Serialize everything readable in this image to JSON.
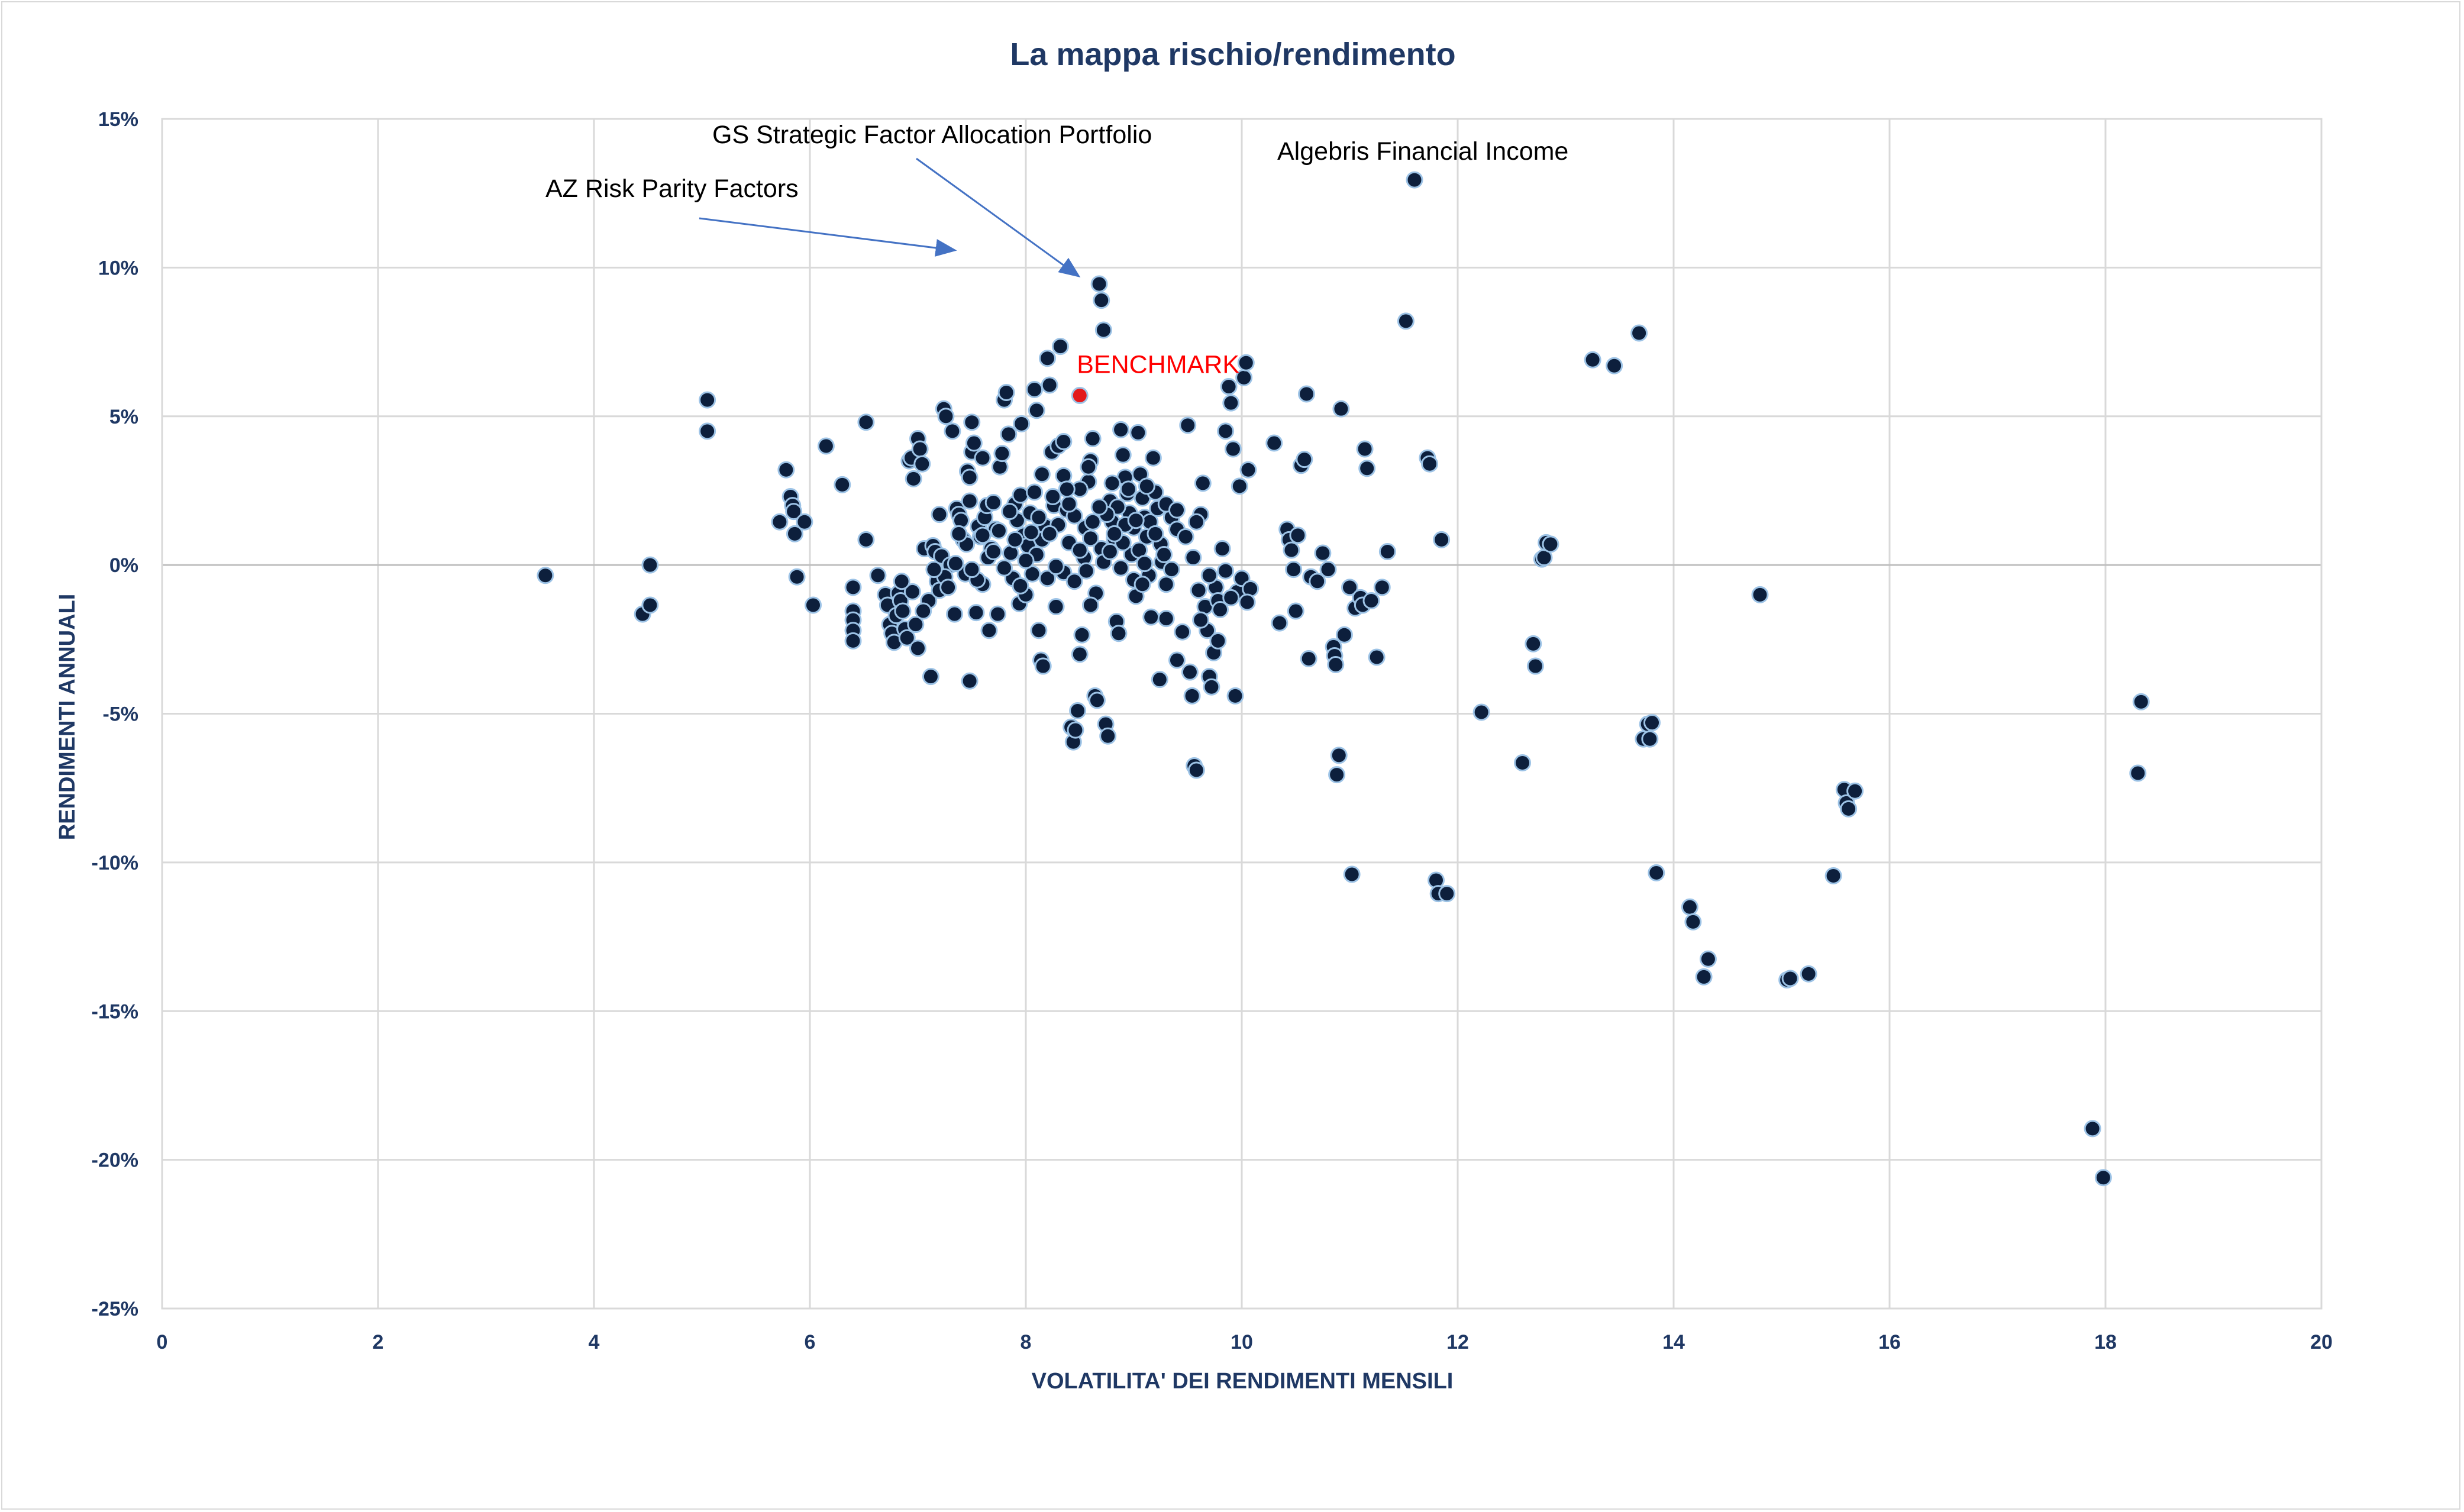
{
  "chart_data": {
    "type": "scatter",
    "title": "La mappa rischio/rendimento",
    "xlabel": "VOLATILITA' DEI RENDIMENTI MENSILI",
    "ylabel": "RENDIMENTI ANNUALI",
    "xlim": [
      0,
      20
    ],
    "ylim": [
      -25,
      15
    ],
    "x_ticks": [
      0,
      2,
      4,
      6,
      8,
      10,
      12,
      14,
      16,
      18,
      20
    ],
    "y_ticks": [
      15,
      10,
      5,
      0,
      -5,
      -10,
      -15,
      -20,
      -25
    ],
    "y_tick_labels": [
      "15%",
      "10%",
      "5%",
      "0%",
      "-5%",
      "-10%",
      "-15%",
      "-20%",
      "-25%"
    ],
    "grid": true,
    "legend": "none",
    "colors": {
      "points": "#0d1f3c",
      "point_outline": "#9dc3e6",
      "benchmark": "#e31a1c",
      "text": "#1f3864",
      "arrow": "#4472c4"
    },
    "benchmark": {
      "label": "BENCHMARK",
      "x": 8.5,
      "y": 5.7
    },
    "annotations": [
      {
        "text": "GS Strategic Factor Allocation Portfolio",
        "x": 8.6,
        "y": 9.5
      },
      {
        "text": "AZ Risk Parity Factors",
        "x": 7.45,
        "y": 10.35
      },
      {
        "text": "Algebris Financial Income",
        "x": 11.6,
        "y": 12.95
      }
    ],
    "points": [
      [
        3.55,
        -0.35
      ],
      [
        4.45,
        -1.65
      ],
      [
        4.52,
        -1.35
      ],
      [
        4.52,
        0.0
      ],
      [
        5.05,
        5.55
      ],
      [
        5.05,
        4.5
      ],
      [
        5.72,
        1.45
      ],
      [
        5.78,
        3.2
      ],
      [
        5.82,
        2.3
      ],
      [
        5.84,
        2.0
      ],
      [
        5.85,
        1.8
      ],
      [
        5.86,
        1.05
      ],
      [
        5.88,
        -0.4
      ],
      [
        5.95,
        1.45
      ],
      [
        6.03,
        -1.35
      ],
      [
        6.15,
        4.0
      ],
      [
        6.3,
        2.7
      ],
      [
        6.4,
        -0.75
      ],
      [
        6.4,
        -1.55
      ],
      [
        6.4,
        -1.85
      ],
      [
        6.4,
        -2.2
      ],
      [
        6.4,
        -2.55
      ],
      [
        6.52,
        4.8
      ],
      [
        6.52,
        0.85
      ],
      [
        6.63,
        -0.35
      ],
      [
        6.7,
        -1.0
      ],
      [
        6.72,
        -1.35
      ],
      [
        6.74,
        -2.0
      ],
      [
        6.76,
        -2.3
      ],
      [
        6.78,
        -2.6
      ],
      [
        6.8,
        -1.7
      ],
      [
        6.82,
        -0.95
      ],
      [
        6.84,
        -1.2
      ],
      [
        6.86,
        -1.55
      ],
      [
        6.88,
        -2.15
      ],
      [
        6.9,
        -2.45
      ],
      [
        6.92,
        3.5
      ],
      [
        6.94,
        3.6
      ],
      [
        6.96,
        2.9
      ],
      [
        6.98,
        -2.0
      ],
      [
        7.0,
        4.25
      ],
      [
        7.02,
        3.9
      ],
      [
        7.04,
        3.4
      ],
      [
        7.06,
        0.55
      ],
      [
        7.1,
        -1.2
      ],
      [
        7.12,
        -3.75
      ],
      [
        7.14,
        0.65
      ],
      [
        7.16,
        0.45
      ],
      [
        7.18,
        -0.55
      ],
      [
        7.2,
        -0.85
      ],
      [
        7.22,
        0.3
      ],
      [
        7.24,
        5.25
      ],
      [
        7.26,
        5.0
      ],
      [
        7.3,
        0.0
      ],
      [
        7.32,
        4.5
      ],
      [
        7.34,
        -1.65
      ],
      [
        7.36,
        1.9
      ],
      [
        7.38,
        1.7
      ],
      [
        7.4,
        1.5
      ],
      [
        7.42,
        0.85
      ],
      [
        7.44,
        -0.3
      ],
      [
        7.46,
        3.15
      ],
      [
        7.48,
        2.95
      ],
      [
        7.48,
        -3.9
      ],
      [
        7.5,
        3.8
      ],
      [
        7.5,
        4.8
      ],
      [
        7.52,
        4.1
      ],
      [
        7.54,
        -1.6
      ],
      [
        7.56,
        1.3
      ],
      [
        7.58,
        0.95
      ],
      [
        7.6,
        -0.65
      ],
      [
        7.62,
        1.6
      ],
      [
        7.64,
        2.0
      ],
      [
        7.66,
        -2.2
      ],
      [
        7.68,
        0.55
      ],
      [
        7.7,
        2.1
      ],
      [
        7.72,
        1.2
      ],
      [
        7.74,
        -1.65
      ],
      [
        7.76,
        3.3
      ],
      [
        7.78,
        3.75
      ],
      [
        7.8,
        5.55
      ],
      [
        7.82,
        5.8
      ],
      [
        7.84,
        4.4
      ],
      [
        7.86,
        0.4
      ],
      [
        7.88,
        -0.45
      ],
      [
        7.9,
        2.05
      ],
      [
        7.92,
        1.5
      ],
      [
        7.94,
        -1.3
      ],
      [
        7.96,
        4.75
      ],
      [
        7.98,
        1.0
      ],
      [
        8.0,
        -1.0
      ],
      [
        8.02,
        0.65
      ],
      [
        8.04,
        1.75
      ],
      [
        8.06,
        -0.3
      ],
      [
        8.08,
        5.9
      ],
      [
        8.1,
        5.2
      ],
      [
        8.12,
        -2.2
      ],
      [
        8.14,
        -3.2
      ],
      [
        8.16,
        -3.4
      ],
      [
        8.18,
        1.3
      ],
      [
        8.2,
        6.95
      ],
      [
        8.22,
        6.05
      ],
      [
        8.24,
        3.8
      ],
      [
        8.26,
        2.0
      ],
      [
        8.28,
        -1.4
      ],
      [
        8.3,
        4.0
      ],
      [
        8.32,
        7.35
      ],
      [
        8.35,
        3.0
      ],
      [
        8.38,
        1.85
      ],
      [
        8.4,
        0.75
      ],
      [
        8.42,
        -5.45
      ],
      [
        8.44,
        -5.95
      ],
      [
        8.46,
        -5.55
      ],
      [
        8.48,
        -4.9
      ],
      [
        8.5,
        -3.0
      ],
      [
        8.52,
        -2.35
      ],
      [
        8.54,
        0.25
      ],
      [
        8.56,
        -0.2
      ],
      [
        8.58,
        2.8
      ],
      [
        8.6,
        3.5
      ],
      [
        8.62,
        4.25
      ],
      [
        8.64,
        -4.4
      ],
      [
        8.66,
        -4.55
      ],
      [
        8.68,
        9.45
      ],
      [
        8.7,
        8.9
      ],
      [
        8.72,
        7.9
      ],
      [
        8.74,
        -5.35
      ],
      [
        8.76,
        -5.75
      ],
      [
        8.78,
        2.15
      ],
      [
        8.8,
        1.45
      ],
      [
        8.82,
        0.9
      ],
      [
        8.84,
        -1.9
      ],
      [
        8.86,
        -2.3
      ],
      [
        8.88,
        4.55
      ],
      [
        8.9,
        3.7
      ],
      [
        8.92,
        2.95
      ],
      [
        8.94,
        2.4
      ],
      [
        8.96,
        1.75
      ],
      [
        8.98,
        0.35
      ],
      [
        9.0,
        -0.5
      ],
      [
        9.02,
        -1.05
      ],
      [
        9.04,
        4.45
      ],
      [
        9.06,
        3.05
      ],
      [
        9.08,
        2.25
      ],
      [
        9.1,
        1.6
      ],
      [
        9.12,
        0.95
      ],
      [
        9.14,
        -0.35
      ],
      [
        9.16,
        -1.75
      ],
      [
        9.18,
        3.6
      ],
      [
        9.2,
        2.45
      ],
      [
        9.22,
        1.9
      ],
      [
        9.24,
        -3.85
      ],
      [
        9.26,
        0.1
      ],
      [
        9.3,
        -0.65
      ],
      [
        9.35,
        1.6
      ],
      [
        9.4,
        -3.2
      ],
      [
        9.45,
        -2.25
      ],
      [
        9.5,
        4.7
      ],
      [
        9.52,
        -3.6
      ],
      [
        9.54,
        -4.4
      ],
      [
        9.56,
        -6.75
      ],
      [
        9.58,
        -6.9
      ],
      [
        9.6,
        -0.85
      ],
      [
        9.62,
        1.7
      ],
      [
        9.64,
        2.75
      ],
      [
        9.66,
        -1.4
      ],
      [
        9.68,
        -2.2
      ],
      [
        9.7,
        -3.75
      ],
      [
        9.72,
        -4.1
      ],
      [
        9.74,
        -2.95
      ],
      [
        9.76,
        -0.75
      ],
      [
        9.78,
        -1.2
      ],
      [
        9.8,
        -1.5
      ],
      [
        9.82,
        0.55
      ],
      [
        9.85,
        4.5
      ],
      [
        9.88,
        6.0
      ],
      [
        9.9,
        5.45
      ],
      [
        9.92,
        3.9
      ],
      [
        9.94,
        -4.4
      ],
      [
        9.96,
        -0.9
      ],
      [
        9.98,
        2.65
      ],
      [
        10.0,
        -0.45
      ],
      [
        10.02,
        6.3
      ],
      [
        10.04,
        6.8
      ],
      [
        10.06,
        3.2
      ],
      [
        10.08,
        -0.8
      ],
      [
        10.3,
        4.1
      ],
      [
        10.35,
        -1.95
      ],
      [
        10.42,
        1.2
      ],
      [
        10.44,
        0.85
      ],
      [
        10.46,
        0.5
      ],
      [
        10.48,
        -0.15
      ],
      [
        10.5,
        -1.55
      ],
      [
        10.52,
        1.0
      ],
      [
        10.55,
        3.35
      ],
      [
        10.58,
        3.55
      ],
      [
        10.6,
        5.75
      ],
      [
        10.62,
        -3.15
      ],
      [
        10.64,
        -0.4
      ],
      [
        10.7,
        -0.55
      ],
      [
        10.75,
        0.4
      ],
      [
        10.8,
        -0.15
      ],
      [
        10.85,
        -2.75
      ],
      [
        10.86,
        -3.05
      ],
      [
        10.87,
        -3.35
      ],
      [
        10.88,
        -7.05
      ],
      [
        10.9,
        -6.4
      ],
      [
        10.92,
        5.25
      ],
      [
        10.95,
        -2.35
      ],
      [
        11.0,
        -0.75
      ],
      [
        11.02,
        -10.4
      ],
      [
        11.05,
        -1.45
      ],
      [
        11.1,
        -1.1
      ],
      [
        11.12,
        -1.35
      ],
      [
        11.14,
        3.9
      ],
      [
        11.16,
        3.25
      ],
      [
        11.2,
        -1.2
      ],
      [
        11.25,
        -3.1
      ],
      [
        11.3,
        -0.75
      ],
      [
        11.35,
        0.45
      ],
      [
        11.52,
        8.2
      ],
      [
        11.6,
        12.95
      ],
      [
        11.72,
        3.6
      ],
      [
        11.74,
        3.4
      ],
      [
        11.8,
        -10.6
      ],
      [
        11.82,
        -11.05
      ],
      [
        11.85,
        0.85
      ],
      [
        11.9,
        -11.05
      ],
      [
        12.22,
        -4.95
      ],
      [
        12.6,
        -6.65
      ],
      [
        12.7,
        -2.65
      ],
      [
        12.72,
        -3.4
      ],
      [
        12.78,
        0.2
      ],
      [
        12.8,
        0.25
      ],
      [
        12.82,
        0.75
      ],
      [
        12.86,
        0.7
      ],
      [
        13.25,
        6.9
      ],
      [
        13.45,
        6.7
      ],
      [
        13.68,
        7.8
      ],
      [
        13.72,
        -5.85
      ],
      [
        13.76,
        -5.35
      ],
      [
        13.78,
        -5.85
      ],
      [
        13.8,
        -5.3
      ],
      [
        13.84,
        -10.35
      ],
      [
        14.15,
        -11.5
      ],
      [
        14.18,
        -12.0
      ],
      [
        14.28,
        -13.85
      ],
      [
        14.32,
        -13.25
      ],
      [
        14.8,
        -1.0
      ],
      [
        15.05,
        -13.95
      ],
      [
        15.08,
        -13.9
      ],
      [
        15.25,
        -13.75
      ],
      [
        15.48,
        -10.45
      ],
      [
        15.58,
        -7.55
      ],
      [
        15.6,
        -8.0
      ],
      [
        15.62,
        -8.2
      ],
      [
        15.68,
        -7.6
      ],
      [
        17.88,
        -18.95
      ],
      [
        17.98,
        -20.6
      ],
      [
        18.3,
        -7.0
      ],
      [
        18.33,
        -4.6
      ],
      [
        7.0,
        -2.8
      ],
      [
        6.95,
        -0.9
      ],
      [
        7.55,
        -0.5
      ],
      [
        8.15,
        0.85
      ],
      [
        8.45,
        1.65
      ],
      [
        8.7,
        0.55
      ],
      [
        9.25,
        0.7
      ],
      [
        9.4,
        1.2
      ],
      [
        7.85,
        1.8
      ],
      [
        8.05,
        1.1
      ],
      [
        8.55,
        1.25
      ],
      [
        8.85,
        1.95
      ],
      [
        9.05,
        0.5
      ],
      [
        7.65,
        0.25
      ],
      [
        7.25,
        -0.4
      ],
      [
        7.95,
        -0.7
      ],
      [
        8.35,
        -0.25
      ],
      [
        8.65,
        -0.95
      ],
      [
        9.15,
        1.45
      ],
      [
        8.25,
        2.3
      ],
      [
        8.95,
        2.55
      ],
      [
        7.45,
        0.7
      ],
      [
        7.75,
        1.15
      ],
      [
        8.1,
        0.35
      ],
      [
        8.4,
        2.05
      ],
      [
        8.75,
        1.7
      ],
      [
        9.0,
        1.25
      ],
      [
        9.3,
        2.05
      ],
      [
        9.55,
        0.25
      ],
      [
        9.7,
        -0.35
      ],
      [
        9.85,
        -0.2
      ],
      [
        7.15,
        -0.15
      ],
      [
        7.35,
        0.05
      ],
      [
        7.95,
        2.35
      ],
      [
        8.6,
        0.9
      ],
      [
        8.8,
        2.75
      ],
      [
        9.1,
        0.05
      ],
      [
        9.35,
        -0.15
      ],
      [
        8.3,
        1.35
      ],
      [
        8.5,
        2.55
      ],
      [
        8.9,
        0.75
      ],
      [
        9.2,
        1.05
      ],
      [
        7.6,
        1.0
      ],
      [
        7.8,
        -0.1
      ],
      [
        8.0,
        0.15
      ],
      [
        8.2,
        -0.45
      ],
      [
        8.45,
        -0.55
      ],
      [
        8.72,
        0.1
      ],
      [
        9.48,
        0.95
      ],
      [
        9.62,
        -1.85
      ],
      [
        9.78,
        -2.55
      ],
      [
        6.85,
        -0.55
      ],
      [
        7.05,
        -1.55
      ],
      [
        7.28,
        -0.75
      ],
      [
        7.5,
        -0.15
      ],
      [
        7.7,
        0.45
      ],
      [
        8.88,
        -0.1
      ],
      [
        9.08,
        -0.65
      ],
      [
        9.28,
        0.35
      ],
      [
        8.58,
        3.3
      ],
      [
        8.35,
        4.15
      ],
      [
        7.6,
        3.6
      ],
      [
        8.15,
        3.05
      ],
      [
        9.4,
        1.85
      ],
      [
        8.68,
        1.95
      ],
      [
        8.92,
        1.35
      ],
      [
        7.38,
        1.05
      ],
      [
        8.08,
        2.45
      ],
      [
        9.12,
        2.65
      ],
      [
        8.78,
        0.45
      ],
      [
        8.22,
        1.05
      ],
      [
        7.9,
        0.85
      ],
      [
        9.02,
        1.5
      ],
      [
        8.5,
        0.5
      ],
      [
        8.62,
        1.45
      ],
      [
        8.82,
        1.05
      ],
      [
        9.58,
        1.45
      ],
      [
        9.9,
        -1.1
      ],
      [
        10.05,
        -1.25
      ],
      [
        9.3,
        -1.8
      ],
      [
        8.6,
        -1.35
      ],
      [
        8.28,
        -0.05
      ],
      [
        8.12,
        1.6
      ],
      [
        7.48,
        2.15
      ],
      [
        7.2,
        1.7
      ],
      [
        8.38,
        2.55
      ]
    ]
  }
}
